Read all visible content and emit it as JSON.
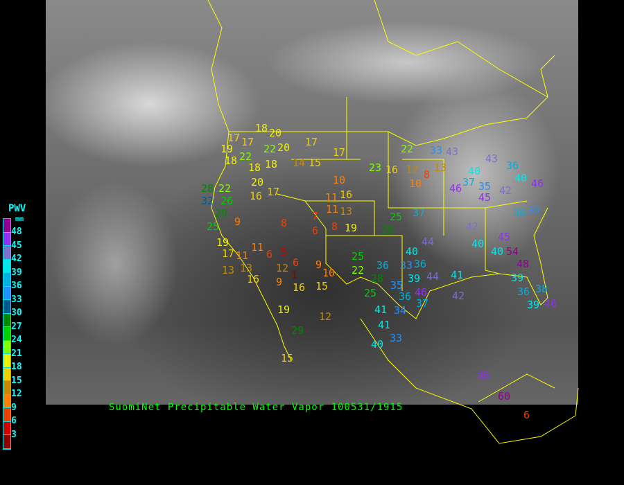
{
  "caption": "SuomiNet Precipitable Water Vapor 100531/1915",
  "legend": {
    "title": "PWV",
    "unit": "mm",
    "ticks": [
      "48",
      "45",
      "42",
      "39",
      "36",
      "33",
      "30",
      "27",
      "24",
      "21",
      "18",
      "15",
      "12",
      "9",
      "6",
      "3"
    ],
    "colors": [
      "#900090",
      "#9030f0",
      "#7a70d0",
      "#00e8e8",
      "#00b0e0",
      "#2090ff",
      "#005a90",
      "#008800",
      "#00d000",
      "#80ff00",
      "#f0f000",
      "#f0d000",
      "#c88800",
      "#ff8000",
      "#f04000",
      "#d00000",
      "#8b0000"
    ]
  },
  "colors": {
    "borders": "#ffff00",
    "background": "#000000",
    "caption": "#00ff00",
    "legend_text": "#00ffff"
  },
  "stations": [
    "18",
    "20",
    "17",
    "20",
    "17",
    "19",
    "22",
    "22",
    "17",
    "15",
    "14",
    "18",
    "18",
    "18",
    "10",
    "16",
    "20",
    "16",
    "17",
    "11",
    "13",
    "11",
    "7",
    "8",
    "6",
    "8",
    "11",
    "13",
    "19",
    "28",
    "22",
    "32",
    "26",
    "29",
    "25",
    "9",
    "19",
    "17",
    "13",
    "16",
    "11",
    "6",
    "5",
    "12",
    "6",
    "9",
    "9",
    "1",
    "16",
    "15",
    "10",
    "17",
    "19",
    "29",
    "15",
    "12",
    "23",
    "16",
    "22",
    "12",
    "10",
    "8",
    "25",
    "37",
    "28",
    "25",
    "22",
    "28",
    "25",
    "36",
    "33",
    "35",
    "36",
    "39",
    "46",
    "37",
    "41",
    "34",
    "41",
    "33",
    "40",
    "40",
    "44",
    "36",
    "44",
    "41",
    "42",
    "45",
    "40",
    "54",
    "48",
    "39",
    "36",
    "38",
    "39",
    "46",
    "40",
    "42",
    "38",
    "35",
    "36",
    "40",
    "46",
    "43",
    "46",
    "40",
    "35",
    "45",
    "42",
    "37",
    "43",
    "33",
    "13",
    "46",
    "60",
    "6"
  ]
}
